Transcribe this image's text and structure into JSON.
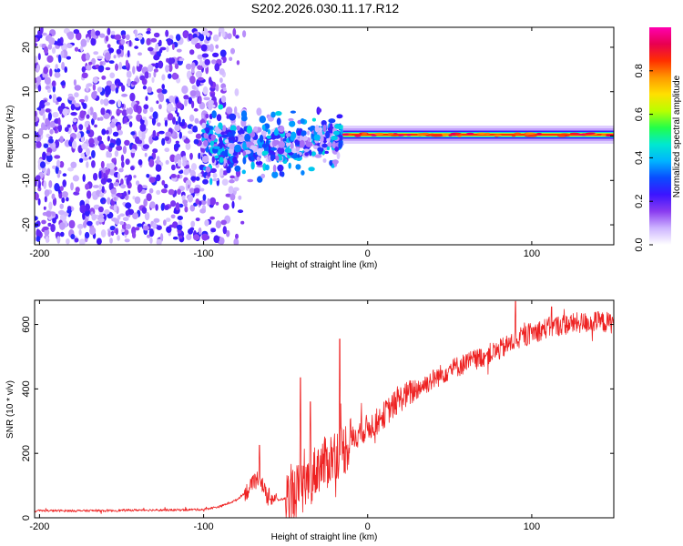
{
  "title": "S202.2026.030.11.17.R12",
  "chart_data": [
    {
      "type": "heatmap",
      "xlabel": "Height of straight line (km)",
      "ylabel": "Frequency (Hz)",
      "xlim": [
        -203,
        150
      ],
      "ylim": [
        -24.5,
        24.5
      ],
      "xticks": [
        -200,
        -100,
        0,
        100
      ],
      "xtick_labels": [
        "-200",
        "-100",
        "0",
        "100"
      ],
      "yticks": [
        -20,
        -10,
        0,
        10,
        20
      ],
      "ytick_labels": [
        "-20",
        "-10",
        "0",
        "10",
        "20"
      ],
      "colorbar": {
        "label": "Normalized spectral amplitude",
        "range": [
          0,
          1
        ],
        "ticks": [
          0.0,
          0.2,
          0.4,
          0.6,
          0.8
        ],
        "tick_labels": [
          "0.0",
          "0.2",
          "0.4",
          "0.6",
          "0.8"
        ],
        "colors": [
          "#ffffff",
          "#cdb4ff",
          "#8a3cf0",
          "#3c14ff",
          "#0a4cff",
          "#00b4ff",
          "#00e8d0",
          "#22ff4a",
          "#b8ff00",
          "#ffe000",
          "#ff9a00",
          "#ff3000",
          "#e80050",
          "#ff00b0"
        ]
      },
      "regions": [
        {
          "name": "noise",
          "x": [
            -203,
            -95
          ],
          "freq_spread": 24,
          "level": 0.18
        },
        {
          "name": "transition",
          "x": [
            -100,
            -15
          ],
          "freq_spread": 9,
          "level": 0.28
        },
        {
          "name": "tone",
          "x": [
            -15,
            150
          ],
          "freq": 0.3,
          "level": 0.8
        }
      ]
    },
    {
      "type": "line",
      "xlabel": "Height of straight line (km)",
      "ylabel": "SNR (10 * v/v)",
      "xlim": [
        -203,
        150
      ],
      "ylim": [
        0,
        675
      ],
      "xticks": [
        -200,
        -100,
        0,
        100
      ],
      "xtick_labels": [
        "-200",
        "-100",
        "0",
        "100"
      ],
      "yticks": [
        0,
        200,
        400,
        600
      ],
      "ytick_labels": [
        "0",
        "200",
        "400",
        "600"
      ],
      "color": "#ee2222",
      "x": [
        -203,
        -180,
        -160,
        -140,
        -120,
        -100,
        -90,
        -80,
        -72,
        -66,
        -62,
        -55,
        -50,
        -45,
        -40,
        -35,
        -30,
        -25,
        -20,
        -15,
        -10,
        -5,
        0,
        5,
        10,
        15,
        20,
        30,
        40,
        50,
        60,
        70,
        80,
        90,
        100,
        110,
        120,
        130,
        140,
        150
      ],
      "y": [
        22,
        22,
        22,
        24,
        24,
        26,
        35,
        55,
        90,
        130,
        70,
        55,
        60,
        80,
        90,
        120,
        160,
        170,
        200,
        210,
        240,
        265,
        280,
        295,
        320,
        345,
        370,
        400,
        430,
        460,
        480,
        500,
        520,
        550,
        575,
        590,
        600,
        605,
        608,
        605
      ],
      "spikes": [
        {
          "x": -66,
          "y": 225
        },
        {
          "x": -41,
          "y": 435
        },
        {
          "x": -35,
          "y": 360
        },
        {
          "x": -17,
          "y": 555
        },
        {
          "x": 90,
          "y": 672
        },
        {
          "x": 112,
          "y": 655
        }
      ]
    }
  ]
}
